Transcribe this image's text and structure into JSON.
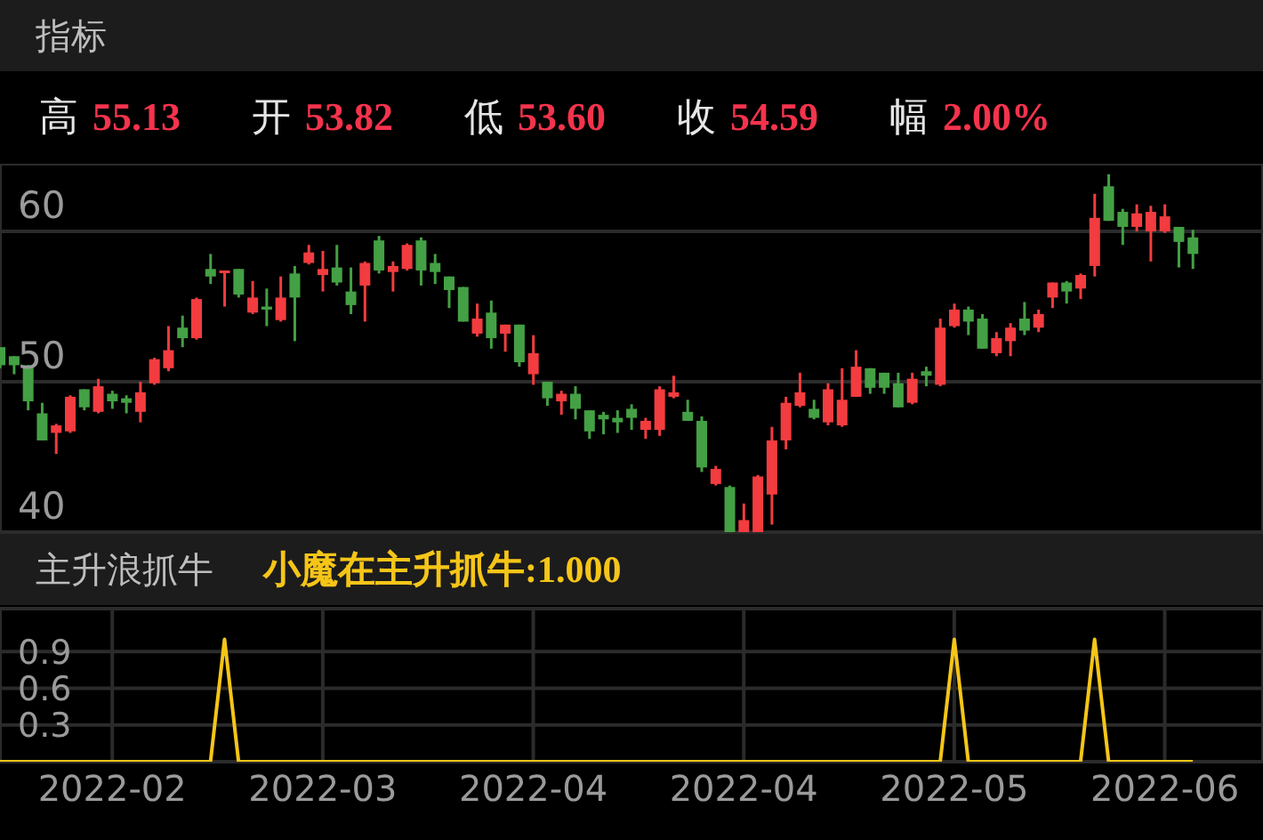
{
  "chart_data": [
    {
      "type": "candlestick",
      "title": "指标",
      "annotations": [
        "高 55.13",
        "开 53.82",
        "低 53.60",
        "收 54.59",
        "幅 2.00%"
      ],
      "categories": [
        null,
        null,
        null,
        null,
        null,
        null,
        null,
        null,
        "2022-02",
        null,
        null,
        null,
        null,
        null,
        null,
        null,
        null,
        null,
        null,
        null,
        null,
        null,
        null,
        "2022-03",
        null,
        null,
        null,
        null,
        null,
        null,
        null,
        null,
        null,
        null,
        null,
        null,
        null,
        null,
        "2022-04",
        null,
        null,
        null,
        null,
        null,
        null,
        null,
        null,
        null,
        null,
        null,
        null,
        null,
        null,
        "2022-04",
        null,
        null,
        null,
        null,
        null,
        null,
        null,
        null,
        null,
        null,
        null,
        null,
        null,
        null,
        "2022-05",
        null,
        null,
        null,
        null,
        null,
        null,
        null,
        null,
        null,
        null,
        null,
        null,
        null,
        null,
        "2022-06",
        null,
        null
      ],
      "ohlc": [
        [
          52.3,
          52.3,
          50.9,
          51.1
        ],
        [
          51.7,
          51.7,
          50.5,
          51.1
        ],
        [
          51.1,
          51.1,
          48.1,
          48.7
        ],
        [
          47.9,
          48.6,
          46.1,
          46.1
        ],
        [
          46.6,
          47.2,
          45.2,
          47.1
        ],
        [
          46.7,
          49.1,
          46.6,
          49.0
        ],
        [
          49.5,
          49.5,
          48.1,
          48.3
        ],
        [
          48.0,
          50.2,
          47.9,
          49.7
        ],
        [
          49.2,
          49.4,
          48.2,
          48.7
        ],
        [
          48.9,
          49.1,
          47.9,
          48.6
        ],
        [
          48.0,
          50.0,
          47.3,
          49.3
        ],
        [
          49.9,
          51.6,
          49.8,
          51.5
        ],
        [
          50.9,
          53.7,
          50.7,
          52.1
        ],
        [
          53.6,
          54.4,
          52.3,
          52.9
        ],
        [
          52.9,
          55.6,
          52.8,
          55.5
        ],
        [
          57.5,
          58.5,
          56.5,
          57.0
        ],
        [
          57.3,
          57.4,
          55.0,
          57.4
        ],
        [
          57.5,
          57.5,
          55.6,
          55.8
        ],
        [
          54.6,
          56.7,
          54.5,
          55.6
        ],
        [
          55.0,
          56.2,
          53.7,
          54.8
        ],
        [
          54.1,
          57.0,
          54.0,
          55.6
        ],
        [
          57.2,
          57.7,
          52.7,
          55.6
        ],
        [
          57.9,
          59.1,
          57.8,
          58.6
        ],
        [
          57.1,
          58.7,
          56.0,
          57.5
        ],
        [
          57.6,
          59.1,
          56.4,
          56.6
        ],
        [
          56.0,
          57.6,
          54.5,
          55.1
        ],
        [
          56.4,
          58.0,
          54.0,
          57.9
        ],
        [
          59.4,
          59.7,
          57.2,
          57.4
        ],
        [
          57.3,
          58.0,
          56.0,
          57.7
        ],
        [
          57.5,
          59.2,
          57.4,
          59.1
        ],
        [
          59.4,
          59.6,
          56.4,
          57.4
        ],
        [
          57.9,
          58.5,
          56.5,
          57.3
        ],
        [
          57.0,
          57.0,
          54.9,
          56.1
        ],
        [
          56.3,
          56.3,
          54.0,
          54.0
        ],
        [
          53.2,
          55.2,
          53.0,
          54.2
        ],
        [
          54.6,
          55.4,
          52.2,
          52.9
        ],
        [
          53.2,
          53.8,
          52.0,
          53.8
        ],
        [
          53.8,
          53.8,
          51.0,
          51.3
        ],
        [
          50.5,
          53.1,
          49.8,
          51.9
        ],
        [
          50.0,
          50.0,
          48.4,
          48.9
        ],
        [
          48.7,
          49.4,
          47.8,
          49.2
        ],
        [
          49.2,
          49.7,
          47.5,
          48.2
        ],
        [
          48.1,
          48.1,
          46.2,
          46.7
        ],
        [
          47.8,
          48.0,
          46.5,
          47.5
        ],
        [
          47.6,
          48.1,
          46.6,
          47.3
        ],
        [
          48.2,
          48.5,
          46.8,
          47.6
        ],
        [
          46.8,
          47.6,
          46.2,
          47.4
        ],
        [
          46.8,
          49.7,
          46.4,
          49.5
        ],
        [
          49.0,
          50.4,
          48.9,
          49.3
        ],
        [
          48.0,
          48.8,
          47.4,
          47.4
        ],
        [
          47.4,
          47.7,
          44.0,
          44.3
        ],
        [
          43.2,
          44.4,
          43.1,
          44.2
        ],
        [
          43.0,
          43.1,
          40.0,
          40.0
        ],
        [
          40.0,
          41.9,
          40.0,
          40.8
        ],
        [
          40.0,
          43.8,
          40.0,
          43.7
        ],
        [
          42.5,
          47.0,
          40.5,
          46.1
        ],
        [
          46.1,
          49.0,
          45.5,
          48.6
        ],
        [
          48.4,
          50.6,
          48.3,
          49.3
        ],
        [
          48.2,
          48.8,
          47.5,
          47.6
        ],
        [
          47.3,
          49.9,
          47.1,
          49.5
        ],
        [
          47.1,
          50.9,
          47.0,
          48.8
        ],
        [
          49.0,
          52.1,
          49.0,
          51.0
        ],
        [
          50.9,
          50.9,
          49.2,
          49.6
        ],
        [
          50.6,
          50.6,
          49.2,
          49.6
        ],
        [
          49.9,
          50.6,
          48.3,
          48.3
        ],
        [
          48.6,
          50.6,
          48.5,
          50.2
        ],
        [
          50.7,
          51.0,
          49.7,
          50.4
        ],
        [
          49.8,
          54.2,
          49.7,
          53.6
        ],
        [
          53.7,
          55.2,
          53.6,
          54.8
        ],
        [
          54.8,
          55.0,
          53.1,
          54.0
        ],
        [
          54.2,
          54.5,
          52.2,
          52.2
        ],
        [
          51.9,
          53.3,
          51.7,
          52.9
        ],
        [
          52.7,
          53.9,
          51.7,
          53.6
        ],
        [
          54.2,
          55.3,
          53.1,
          53.4
        ],
        [
          53.6,
          54.8,
          53.3,
          54.5
        ],
        [
          55.6,
          56.6,
          54.9,
          56.6
        ],
        [
          56.6,
          56.7,
          55.2,
          56.0
        ],
        [
          56.2,
          57.2,
          55.5,
          57.1
        ],
        [
          57.7,
          62.5,
          57.0,
          60.9
        ],
        [
          63.0,
          63.8,
          60.7,
          60.7
        ],
        [
          61.3,
          61.5,
          59.1,
          60.3
        ],
        [
          60.3,
          61.8,
          60.0,
          61.2
        ],
        [
          60.0,
          61.7,
          58.0,
          61.3
        ],
        [
          60.0,
          61.8,
          59.9,
          61.0
        ],
        [
          60.3,
          60.3,
          57.6,
          59.3
        ],
        [
          59.6,
          60.1,
          57.5,
          58.5
        ]
      ],
      "ylim": [
        40,
        64.5
      ],
      "yticks": [
        40,
        50,
        60
      ],
      "grid": true,
      "tick_labels": "y"
    },
    {
      "type": "line",
      "title": "主升浪抓牛",
      "categories": [
        null,
        null,
        null,
        null,
        null,
        null,
        null,
        null,
        "2022-02",
        null,
        null,
        null,
        null,
        null,
        null,
        null,
        null,
        null,
        null,
        null,
        null,
        null,
        null,
        "2022-03",
        null,
        null,
        null,
        null,
        null,
        null,
        null,
        null,
        null,
        null,
        null,
        null,
        null,
        null,
        "2022-04",
        null,
        null,
        null,
        null,
        null,
        null,
        null,
        null,
        null,
        null,
        null,
        null,
        null,
        null,
        "2022-04",
        null,
        null,
        null,
        null,
        null,
        null,
        null,
        null,
        null,
        null,
        null,
        null,
        null,
        null,
        "2022-05",
        null,
        null,
        null,
        null,
        null,
        null,
        null,
        null,
        null,
        null,
        null,
        null,
        null,
        null,
        "2022-06",
        null,
        null
      ],
      "series": [
        {
          "name": "小魔在主升抓牛:1.000",
          "color": "#f5c518",
          "values": [
            0,
            0,
            0,
            0,
            0,
            0,
            0,
            0,
            0,
            0,
            0,
            0,
            0,
            0,
            0,
            0,
            1,
            0,
            0,
            0,
            0,
            0,
            0,
            0,
            0,
            0,
            0,
            0,
            0,
            0,
            0,
            0,
            0,
            0,
            0,
            0,
            0,
            0,
            0,
            0,
            0,
            0,
            0,
            0,
            0,
            0,
            0,
            0,
            0,
            0,
            0,
            0,
            0,
            0,
            0,
            0,
            0,
            0,
            0,
            0,
            0,
            0,
            0,
            0,
            0,
            0,
            0,
            0,
            1,
            0,
            0,
            0,
            0,
            0,
            0,
            0,
            0,
            0,
            1,
            0,
            0,
            0,
            0,
            0,
            0,
            0
          ]
        }
      ],
      "ylim": [
        0,
        1.25
      ],
      "yticks": [
        0.3,
        0.6,
        0.9
      ],
      "grid": true,
      "legend": "top left",
      "marker": "none"
    }
  ]
}
